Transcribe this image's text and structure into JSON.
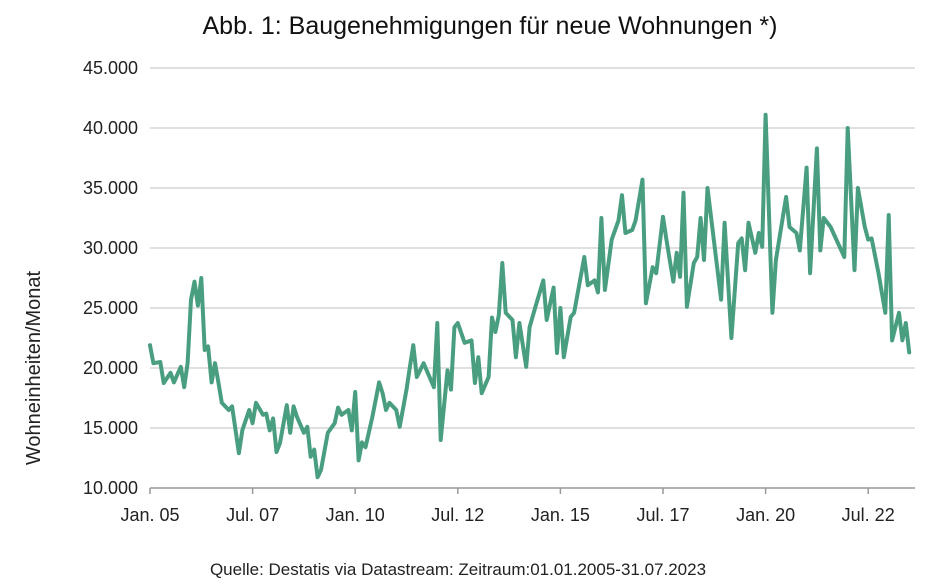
{
  "chart_data": {
    "type": "line",
    "title": "Abb. 1: Baugenehmigungen für neue Wohnungen  *)",
    "xlabel": "",
    "ylabel": "Wohneinheiten/Monat",
    "source": "Quelle: Destatis via Datastream: Zeitraum:01.01.2005-31.07.2023",
    "ylim": [
      10000,
      45000
    ],
    "xlim": [
      "2005-01",
      "2023-07"
    ],
    "grid": "horizontal",
    "line_color": "#4a9e80",
    "y_ticks": [
      {
        "value": 10000,
        "label": "10.000"
      },
      {
        "value": 15000,
        "label": "15.000"
      },
      {
        "value": 20000,
        "label": "20.000"
      },
      {
        "value": 25000,
        "label": "25.000"
      },
      {
        "value": 30000,
        "label": "30.000"
      },
      {
        "value": 35000,
        "label": "35.000"
      },
      {
        "value": 40000,
        "label": "40.000"
      },
      {
        "value": 45000,
        "label": "45.000"
      }
    ],
    "x_ticks": [
      {
        "value": "2005-01",
        "label": "Jan. 05"
      },
      {
        "value": "2007-07",
        "label": "Jul. 07"
      },
      {
        "value": "2010-01",
        "label": "Jan. 10"
      },
      {
        "value": "2012-07",
        "label": "Jul. 12"
      },
      {
        "value": "2015-01",
        "label": "Jan. 15"
      },
      {
        "value": "2017-07",
        "label": "Jul. 17"
      },
      {
        "value": "2020-01",
        "label": "Jan. 20"
      },
      {
        "value": "2022-07",
        "label": "Jul. 22"
      }
    ],
    "series": [
      {
        "points": [
          [
            "2005-01",
            21900
          ],
          [
            "2005-02",
            20400
          ],
          [
            "2005-04",
            20500
          ],
          [
            "2005-05",
            18750
          ],
          [
            "2005-07",
            19600
          ],
          [
            "2005-08",
            18800
          ],
          [
            "2005-10",
            20100
          ],
          [
            "2005-11",
            18400
          ],
          [
            "2005-12",
            20400
          ],
          [
            "2006-01",
            25700
          ],
          [
            "2006-02",
            27200
          ],
          [
            "2006-03",
            25200
          ],
          [
            "2006-04",
            27500
          ],
          [
            "2006-05",
            21500
          ],
          [
            "2006-06",
            21800
          ],
          [
            "2006-07",
            18800
          ],
          [
            "2006-08",
            20400
          ],
          [
            "2006-09",
            18800
          ],
          [
            "2006-10",
            17100
          ],
          [
            "2006-12",
            16500
          ],
          [
            "2007-01",
            16800
          ],
          [
            "2007-03",
            12900
          ],
          [
            "2007-04",
            14800
          ],
          [
            "2007-06",
            16500
          ],
          [
            "2007-07",
            15400
          ],
          [
            "2007-08",
            17100
          ],
          [
            "2007-10",
            16100
          ],
          [
            "2007-11",
            16200
          ],
          [
            "2007-12",
            14800
          ],
          [
            "2008-01",
            15800
          ],
          [
            "2008-02",
            13000
          ],
          [
            "2008-03",
            13750
          ],
          [
            "2008-05",
            16900
          ],
          [
            "2008-06",
            14600
          ],
          [
            "2008-07",
            16800
          ],
          [
            "2008-08",
            15900
          ],
          [
            "2008-10",
            14600
          ],
          [
            "2008-11",
            15100
          ],
          [
            "2008-12",
            12600
          ],
          [
            "2009-01",
            13200
          ],
          [
            "2009-02",
            10900
          ],
          [
            "2009-03",
            11500
          ],
          [
            "2009-05",
            14600
          ],
          [
            "2009-07",
            15400
          ],
          [
            "2009-08",
            16700
          ],
          [
            "2009-09",
            16100
          ],
          [
            "2009-11",
            16500
          ],
          [
            "2009-12",
            14800
          ],
          [
            "2010-01",
            18000
          ],
          [
            "2010-02",
            12300
          ],
          [
            "2010-03",
            13800
          ],
          [
            "2010-04",
            13400
          ],
          [
            "2010-06",
            15900
          ],
          [
            "2010-08",
            18800
          ],
          [
            "2010-09",
            17900
          ],
          [
            "2010-10",
            16500
          ],
          [
            "2010-11",
            17100
          ],
          [
            "2011-01",
            16500
          ],
          [
            "2011-02",
            15100
          ],
          [
            "2011-04",
            18200
          ],
          [
            "2011-05",
            20100
          ],
          [
            "2011-06",
            21900
          ],
          [
            "2011-07",
            19250
          ],
          [
            "2011-09",
            20400
          ],
          [
            "2011-12",
            18400
          ],
          [
            "2012-01",
            23750
          ],
          [
            "2012-02",
            14000
          ],
          [
            "2012-04",
            19800
          ],
          [
            "2012-05",
            18200
          ],
          [
            "2012-06",
            23400
          ],
          [
            "2012-07",
            23750
          ],
          [
            "2012-09",
            22100
          ],
          [
            "2012-11",
            22300
          ],
          [
            "2012-12",
            18750
          ],
          [
            "2013-01",
            20900
          ],
          [
            "2013-02",
            17900
          ],
          [
            "2013-04",
            19250
          ],
          [
            "2013-05",
            24200
          ],
          [
            "2013-06",
            23000
          ],
          [
            "2013-07",
            24400
          ],
          [
            "2013-08",
            28750
          ],
          [
            "2013-09",
            24600
          ],
          [
            "2013-11",
            24000
          ],
          [
            "2013-12",
            20900
          ],
          [
            "2014-01",
            23750
          ],
          [
            "2014-03",
            20100
          ],
          [
            "2014-04",
            23400
          ],
          [
            "2014-06",
            25400
          ],
          [
            "2014-08",
            27300
          ],
          [
            "2014-09",
            24000
          ],
          [
            "2014-11",
            26700
          ],
          [
            "2014-12",
            21250
          ],
          [
            "2015-01",
            25000
          ],
          [
            "2015-02",
            20900
          ],
          [
            "2015-04",
            24250
          ],
          [
            "2015-05",
            24600
          ],
          [
            "2015-08",
            29250
          ],
          [
            "2015-09",
            26900
          ],
          [
            "2015-11",
            27300
          ],
          [
            "2015-12",
            26300
          ],
          [
            "2016-01",
            32500
          ],
          [
            "2016-02",
            26500
          ],
          [
            "2016-04",
            30700
          ],
          [
            "2016-06",
            32300
          ],
          [
            "2016-07",
            34400
          ],
          [
            "2016-08",
            31250
          ],
          [
            "2016-10",
            31500
          ],
          [
            "2016-11",
            32300
          ],
          [
            "2017-01",
            35700
          ],
          [
            "2017-02",
            25400
          ],
          [
            "2017-04",
            28400
          ],
          [
            "2017-05",
            27900
          ],
          [
            "2017-07",
            32600
          ],
          [
            "2017-08",
            30700
          ],
          [
            "2017-10",
            27200
          ],
          [
            "2017-11",
            29600
          ],
          [
            "2017-12",
            27600
          ],
          [
            "2018-01",
            34600
          ],
          [
            "2018-02",
            25100
          ],
          [
            "2018-04",
            28750
          ],
          [
            "2018-05",
            29250
          ],
          [
            "2018-06",
            32500
          ],
          [
            "2018-07",
            29000
          ],
          [
            "2018-08",
            35000
          ],
          [
            "2018-12",
            25700
          ],
          [
            "2019-01",
            32100
          ],
          [
            "2019-03",
            22500
          ],
          [
            "2019-05",
            30400
          ],
          [
            "2019-06",
            30800
          ],
          [
            "2019-07",
            28150
          ],
          [
            "2019-08",
            32100
          ],
          [
            "2019-10",
            29600
          ],
          [
            "2019-11",
            31250
          ],
          [
            "2019-12",
            30100
          ],
          [
            "2020-01",
            41100
          ],
          [
            "2020-03",
            24600
          ],
          [
            "2020-04",
            29000
          ],
          [
            "2020-07",
            34250
          ],
          [
            "2020-08",
            31750
          ],
          [
            "2020-10",
            31250
          ],
          [
            "2020-11",
            29800
          ],
          [
            "2021-01",
            36700
          ],
          [
            "2021-02",
            27900
          ],
          [
            "2021-04",
            38300
          ],
          [
            "2021-05",
            29800
          ],
          [
            "2021-06",
            32500
          ],
          [
            "2021-08",
            31750
          ],
          [
            "2021-12",
            29250
          ],
          [
            "2022-01",
            40000
          ],
          [
            "2022-03",
            28150
          ],
          [
            "2022-04",
            35000
          ],
          [
            "2022-06",
            31750
          ],
          [
            "2022-07",
            30700
          ],
          [
            "2022-08",
            30800
          ],
          [
            "2022-10",
            27900
          ],
          [
            "2022-12",
            24600
          ],
          [
            "2023-01",
            32750
          ],
          [
            "2023-02",
            22300
          ],
          [
            "2023-04",
            24600
          ],
          [
            "2023-05",
            22300
          ],
          [
            "2023-06",
            23750
          ],
          [
            "2023-07",
            21300
          ]
        ]
      }
    ]
  }
}
